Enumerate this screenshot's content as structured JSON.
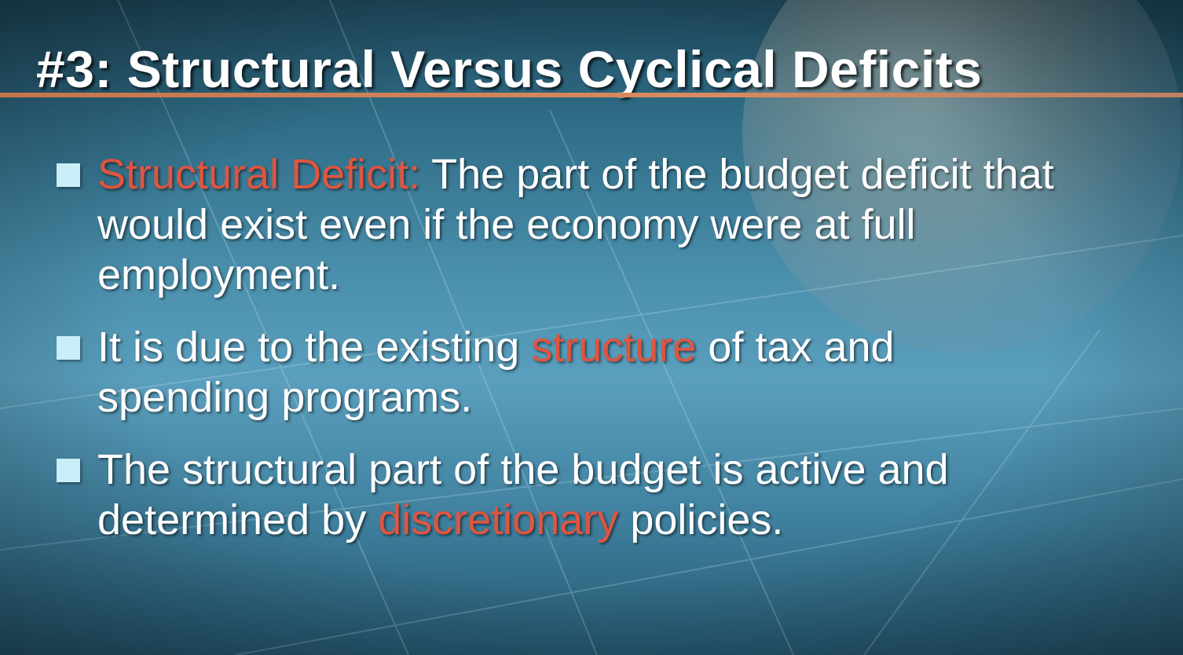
{
  "slide": {
    "title": "#3: Structural Versus Cyclical Deficits",
    "accent_color": "#e0553f",
    "rule_color": "#c4754a",
    "marker_color": "#c9eef8",
    "bullets": [
      {
        "highlight": "Structural Deficit:",
        "text": " The part of the budget deficit that would exist even if the economy were at full employment."
      },
      {
        "before": "It is due to the existing ",
        "highlight": "structure",
        "after": " of tax and spending programs."
      },
      {
        "before": "The structural part of the budget is active and determined by ",
        "highlight": "discretionary",
        "after": " policies."
      }
    ]
  }
}
